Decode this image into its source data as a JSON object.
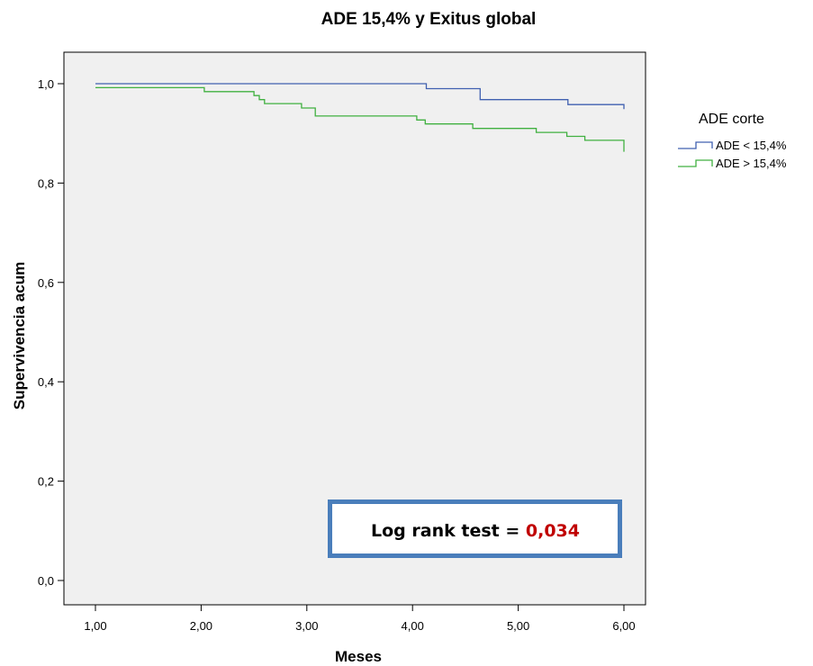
{
  "chart_data": {
    "type": "line",
    "title": "ADE 15,4% y Exitus global",
    "xlabel": "Meses",
    "ylabel": "Supervivencia acum",
    "xlim": [
      0.7,
      6.2
    ],
    "ylim": [
      -0.05,
      1.06
    ],
    "xticks": [
      1,
      2,
      3,
      4,
      5,
      6
    ],
    "xtick_labels": [
      "1,00",
      "2,00",
      "3,00",
      "4,00",
      "5,00",
      "6,00"
    ],
    "yticks": [
      0,
      0.2,
      0.4,
      0.6,
      0.8,
      1.0
    ],
    "ytick_labels": [
      "0,0",
      "0,2",
      "0,4",
      "0,6",
      "0,8",
      "1,0"
    ],
    "grid": false,
    "background": "#f0f0f0",
    "legend": {
      "title": "ADE corte",
      "position": "right"
    },
    "series": [
      {
        "name": "ADE < 15,4%",
        "color": "#4060b0",
        "step": true,
        "x": [
          1.0,
          4.13,
          4.64,
          5.47,
          6.0,
          6.0
        ],
        "y": [
          1.0,
          0.99,
          0.968,
          0.958,
          0.958,
          0.949
        ]
      },
      {
        "name": "ADE > 15,4%",
        "color": "#40b040",
        "step": true,
        "x": [
          1.0,
          2.03,
          2.5,
          2.55,
          2.6,
          2.65,
          2.95,
          3.08,
          4.04,
          4.12,
          4.57,
          5.17,
          5.46,
          5.63,
          6.0,
          6.0
        ],
        "y": [
          0.992,
          0.984,
          0.976,
          0.968,
          0.96,
          0.96,
          0.951,
          0.935,
          0.927,
          0.919,
          0.91,
          0.902,
          0.894,
          0.886,
          0.886,
          0.863
        ]
      }
    ],
    "annotation": {
      "label": "Log rank test = ",
      "value": "0,034",
      "value_color": "#c00000",
      "border_color": "#4a7ebb"
    }
  }
}
